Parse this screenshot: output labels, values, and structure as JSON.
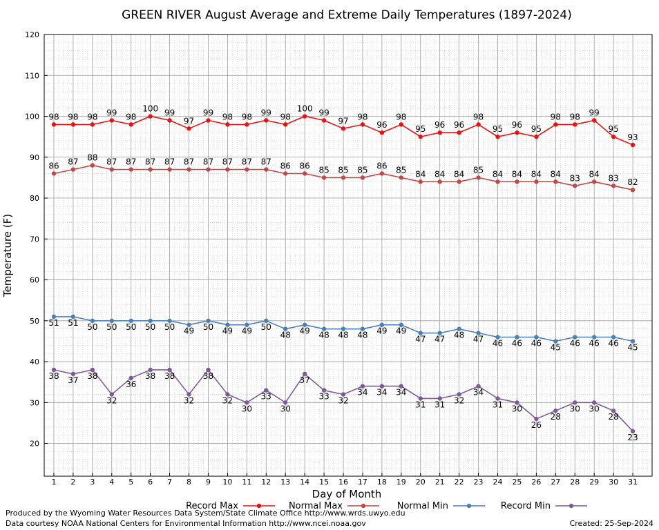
{
  "chart_data": {
    "type": "line",
    "title": "GREEN RIVER August Average and Extreme Daily Temperatures (1897-2024)",
    "xlabel": "Day of Month",
    "ylabel": "Temperature (F)",
    "ylim": [
      12,
      120
    ],
    "yticks": [
      "20",
      "30",
      "40",
      "50",
      "60",
      "70",
      "80",
      "90",
      "100",
      "110",
      "120"
    ],
    "x": [
      "1",
      "2",
      "3",
      "4",
      "5",
      "6",
      "7",
      "8",
      "9",
      "10",
      "11",
      "12",
      "13",
      "14",
      "15",
      "16",
      "17",
      "18",
      "19",
      "20",
      "21",
      "22",
      "23",
      "24",
      "25",
      "26",
      "27",
      "28",
      "29",
      "30",
      "31"
    ],
    "grid": true,
    "legend_position": "bottom",
    "series": [
      {
        "name": "Record Max",
        "color": "#ee1111",
        "label_side": "above",
        "values": [
          98,
          98,
          98,
          99,
          98,
          100,
          99,
          97,
          99,
          98,
          98,
          99,
          98,
          100,
          99,
          97,
          98,
          96,
          98,
          95,
          96,
          96,
          98,
          95,
          96,
          95,
          98,
          98,
          99,
          95,
          93
        ]
      },
      {
        "name": "Normal Max",
        "color": "#c04848",
        "label_side": "above",
        "values": [
          86,
          87,
          88,
          87,
          87,
          87,
          87,
          87,
          87,
          87,
          87,
          87,
          86,
          86,
          85,
          85,
          85,
          86,
          85,
          84,
          84,
          84,
          85,
          84,
          84,
          84,
          84,
          83,
          84,
          83,
          82
        ]
      },
      {
        "name": "Normal Min",
        "color": "#4a7fb8",
        "label_side": "below",
        "values": [
          51,
          51,
          50,
          50,
          50,
          50,
          50,
          49,
          50,
          49,
          49,
          50,
          48,
          49,
          48,
          48,
          48,
          49,
          49,
          47,
          47,
          48,
          47,
          46,
          46,
          46,
          45,
          46,
          46,
          46,
          45
        ]
      },
      {
        "name": "Record Min",
        "color": "#7e5a9b",
        "label_side": "below",
        "values": [
          38,
          37,
          38,
          32,
          36,
          38,
          38,
          32,
          38,
          32,
          30,
          33,
          30,
          37,
          33,
          32,
          34,
          34,
          34,
          31,
          31,
          32,
          34,
          31,
          30,
          26,
          28,
          30,
          30,
          28,
          23
        ]
      }
    ]
  },
  "footer": {
    "produced_by": "Produced by the Wyoming Water Resources Data System/State Climate Office http://www.wrds.uwyo.edu",
    "courtesy": "Data courtesy NOAA National Centers for Environmental Information http://www.ncei.noaa.gov",
    "created": "Created:  25-Sep-2024"
  }
}
